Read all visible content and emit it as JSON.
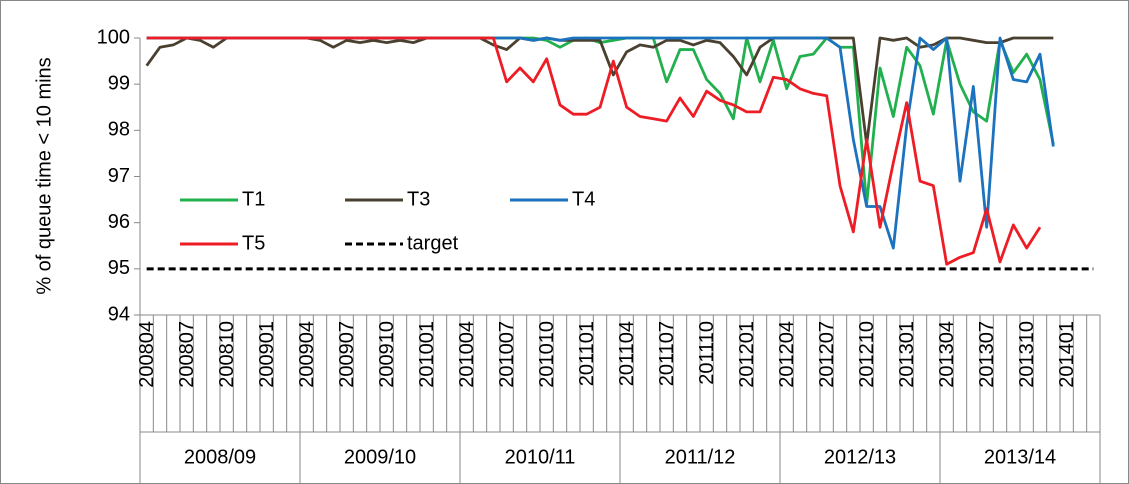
{
  "chart_data": {
    "type": "line",
    "y_label": "% of queue time < 10 mins",
    "categories": [
      "200804",
      null,
      null,
      "200807",
      null,
      null,
      "200810",
      null,
      null,
      "200901",
      null,
      null,
      "200904",
      null,
      null,
      "200907",
      null,
      null,
      "200910",
      null,
      null,
      "201001",
      null,
      null,
      "201004",
      null,
      null,
      "201007",
      null,
      null,
      "201010",
      null,
      null,
      "201101",
      null,
      null,
      "201104",
      null,
      null,
      "201107",
      null,
      null,
      "201110",
      null,
      null,
      "201201",
      null,
      null,
      "201204",
      null,
      null,
      "201207",
      null,
      null,
      "201210",
      null,
      null,
      "201301",
      null,
      null,
      "201304",
      null,
      null,
      "201307",
      null,
      null,
      "201310",
      null,
      null,
      "201401",
      null,
      null
    ],
    "groups": [
      "2008/09",
      "2009/10",
      "2010/11",
      "2011/12",
      "2012/13",
      "2013/14"
    ],
    "ylim": [
      94,
      100
    ],
    "yticks": [
      94,
      95,
      96,
      97,
      98,
      99,
      100
    ],
    "legend": "upper-left",
    "series": [
      {
        "name": "T1",
        "color": "#22b04e",
        "values": [
          100,
          100,
          100,
          100,
          100,
          100,
          100,
          100,
          100,
          100,
          100,
          100,
          100,
          100,
          100,
          100,
          100,
          100,
          100,
          100,
          100,
          100,
          100,
          100,
          100,
          100,
          100,
          100,
          100,
          100,
          99.95,
          99.8,
          99.95,
          100,
          99.9,
          99.95,
          100,
          100,
          100,
          99.05,
          99.75,
          99.75,
          99.1,
          98.8,
          98.25,
          100,
          99.05,
          99.95,
          98.9,
          99.6,
          99.65,
          100,
          99.8,
          99.8,
          96.4,
          99.35,
          98.3,
          99.8,
          99.4,
          98.35,
          99.95,
          99,
          98.4,
          98.2,
          99.95,
          99.25,
          99.65,
          99.1,
          97.7,
          null,
          null,
          null
        ]
      },
      {
        "name": "T3",
        "color": "#4a4030",
        "values": [
          99.4,
          99.8,
          99.85,
          100,
          99.95,
          99.8,
          100,
          100,
          100,
          100,
          100,
          100,
          100,
          99.95,
          99.8,
          99.95,
          99.9,
          99.95,
          99.9,
          99.95,
          99.9,
          100,
          100,
          100,
          100,
          100,
          99.85,
          99.75,
          100,
          99.95,
          100,
          99.95,
          99.95,
          99.95,
          99.95,
          99.2,
          99.7,
          99.85,
          99.8,
          99.95,
          99.95,
          99.85,
          99.95,
          99.9,
          99.6,
          99.2,
          99.8,
          100,
          100,
          100,
          100,
          100,
          100,
          100,
          97.7,
          100,
          99.95,
          100,
          99.8,
          99.85,
          100,
          100,
          99.95,
          99.9,
          99.9,
          100,
          100,
          100,
          100,
          null,
          null,
          null
        ]
      },
      {
        "name": "T4",
        "color": "#1b72be",
        "values": [
          100,
          100,
          100,
          100,
          100,
          100,
          100,
          100,
          100,
          100,
          100,
          100,
          100,
          100,
          100,
          100,
          100,
          100,
          100,
          100,
          100,
          100,
          100,
          100,
          100,
          100,
          100,
          100,
          100,
          99.95,
          100,
          99.95,
          100,
          100,
          100,
          100,
          100,
          100,
          100,
          100,
          100,
          100,
          100,
          100,
          100,
          100,
          100,
          100,
          100,
          100,
          100,
          100,
          99.8,
          97.8,
          96.35,
          96.35,
          95.45,
          98.1,
          100,
          99.75,
          100,
          96.9,
          98.95,
          95.9,
          100,
          99.1,
          99.05,
          99.65,
          97.65,
          null,
          null,
          null
        ]
      },
      {
        "name": "T5",
        "color": "#ee1c24",
        "values": [
          100,
          100,
          100,
          100,
          100,
          100,
          100,
          100,
          100,
          100,
          100,
          100,
          100,
          100,
          100,
          100,
          100,
          100,
          100,
          100,
          100,
          100,
          100,
          100,
          100,
          100,
          100,
          99.05,
          99.35,
          99.05,
          99.55,
          98.55,
          98.35,
          98.35,
          98.5,
          99.5,
          98.5,
          98.3,
          98.25,
          98.2,
          98.7,
          98.3,
          98.85,
          98.65,
          98.55,
          98.4,
          98.4,
          99.15,
          99.1,
          98.9,
          98.8,
          98.75,
          96.8,
          95.8,
          97.8,
          95.9,
          97.3,
          98.6,
          96.9,
          96.8,
          95.1,
          95.25,
          95.35,
          96.3,
          95.15,
          95.95,
          95.45,
          95.9,
          null,
          null,
          null,
          null
        ]
      },
      {
        "name": "target",
        "color": "#000000",
        "dashed": true,
        "values": [
          95,
          95,
          95,
          95,
          95,
          95,
          95,
          95,
          95,
          95,
          95,
          95,
          95,
          95,
          95,
          95,
          95,
          95,
          95,
          95,
          95,
          95,
          95,
          95,
          95,
          95,
          95,
          95,
          95,
          95,
          95,
          95,
          95,
          95,
          95,
          95,
          95,
          95,
          95,
          95,
          95,
          95,
          95,
          95,
          95,
          95,
          95,
          95,
          95,
          95,
          95,
          95,
          95,
          95,
          95,
          95,
          95,
          95,
          95,
          95,
          95,
          95,
          95,
          95,
          95,
          95,
          95,
          95,
          95,
          95,
          95,
          95
        ]
      }
    ]
  }
}
